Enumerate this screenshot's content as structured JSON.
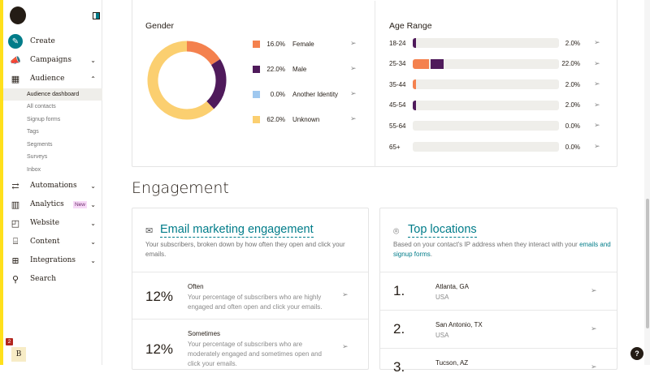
{
  "colors": {
    "accent": "#007c89",
    "brand_yellow": "#ffe01b",
    "female": "#f4814e",
    "male": "#4f1a5b",
    "another": "#9fc8ef",
    "unknown": "#fbcf70",
    "track": "#efeeea"
  },
  "sidebar": {
    "create": "Create",
    "items": [
      {
        "label": "Campaigns",
        "icon": "megaphone-icon"
      },
      {
        "label": "Audience",
        "icon": "audience-icon"
      },
      {
        "label": "Automations",
        "icon": "automation-icon"
      },
      {
        "label": "Analytics",
        "icon": "bar-chart-icon",
        "badge": "New"
      },
      {
        "label": "Website",
        "icon": "website-icon"
      },
      {
        "label": "Content",
        "icon": "content-icon"
      },
      {
        "label": "Integrations",
        "icon": "grid-icon"
      },
      {
        "label": "Search",
        "icon": "search-icon"
      }
    ],
    "audience_sub": [
      "Audience dashboard",
      "All contacts",
      "Signup forms",
      "Tags",
      "Segments",
      "Surveys",
      "Inbox"
    ],
    "avatar_initial": "B",
    "notification_count": "2"
  },
  "gender": {
    "title": "Gender",
    "items": [
      {
        "pct": "16.0%",
        "label": "Female",
        "value": 16
      },
      {
        "pct": "22.0%",
        "label": "Male",
        "value": 22
      },
      {
        "pct": "0.0%",
        "label": "Another Identity",
        "value": 0
      },
      {
        "pct": "62.0%",
        "label": "Unknown",
        "value": 62
      }
    ]
  },
  "age": {
    "title": "Age Range",
    "rows": [
      {
        "label": "18-24",
        "pct": "2.0%",
        "female": 0,
        "male": 2
      },
      {
        "label": "25-34",
        "pct": "22.0%",
        "female": 11,
        "male": 9
      },
      {
        "label": "35-44",
        "pct": "2.0%",
        "female": 2,
        "male": 0
      },
      {
        "label": "45-54",
        "pct": "2.0%",
        "female": 0,
        "male": 2
      },
      {
        "label": "55-64",
        "pct": "0.0%",
        "female": 0,
        "male": 0
      },
      {
        "label": "65+",
        "pct": "0.0%",
        "female": 0,
        "male": 0
      }
    ]
  },
  "engagement": {
    "title": "Engagement",
    "email": {
      "title": "Email marketing engagement",
      "desc": "Your subscribers, broken down by how often they open and click your emails.",
      "rows": [
        {
          "value": "12%",
          "title": "Often",
          "desc": "Your percentage of subscribers who are highly engaged and often open and click your emails."
        },
        {
          "value": "12%",
          "title": "Sometimes",
          "desc": "Your percentage of subscribers who are moderately engaged and sometimes open and click your emails."
        }
      ]
    },
    "locations": {
      "title": "Top locations",
      "desc": "Based on your contact's IP address when they interact with your ",
      "link": "emails and signup forms",
      "desc_end": ".",
      "rows": [
        {
          "rank": "1.",
          "city": "Atlanta, GA",
          "country": "USA"
        },
        {
          "rank": "2.",
          "city": "San Antonio, TX",
          "country": "USA"
        },
        {
          "rank": "3.",
          "city": "Tucson, AZ",
          "country": ""
        }
      ]
    }
  },
  "help": "?"
}
